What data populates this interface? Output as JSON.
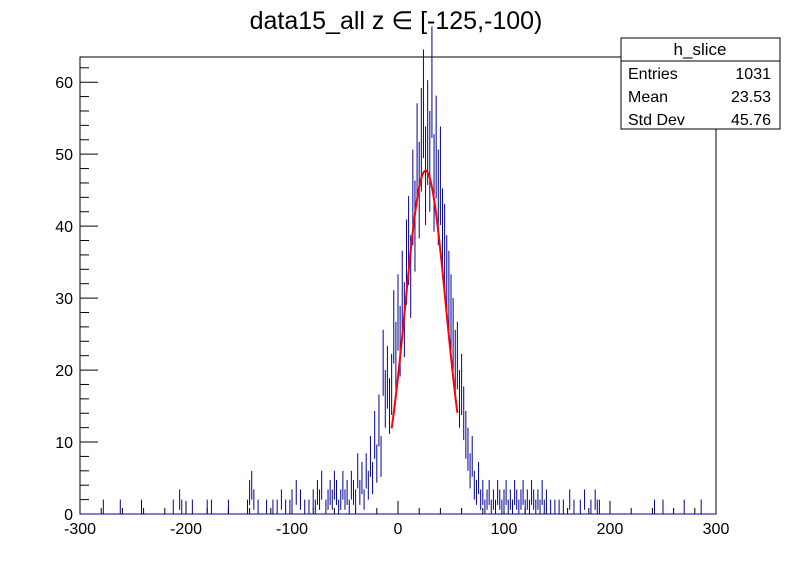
{
  "chart_data": {
    "type": "histogram",
    "title": "data15_all z ∈ [-125,-100)",
    "xlabel": "",
    "ylabel": "",
    "xlim": [
      -300,
      300
    ],
    "ylim": [
      0,
      63.5
    ],
    "x_ticks": [
      -300,
      -200,
      -100,
      0,
      100,
      200,
      300
    ],
    "y_ticks": [
      0,
      10,
      20,
      30,
      40,
      50,
      60
    ],
    "grid": false,
    "bin_width": 2,
    "histogram": {
      "name": "h_slice",
      "color": "#000099",
      "nonzero_bins": [
        [
          -278,
          1
        ],
        [
          -262,
          1
        ],
        [
          -242,
          1
        ],
        [
          -212,
          1
        ],
        [
          -206,
          2
        ],
        [
          -204,
          1
        ],
        [
          -194,
          1
        ],
        [
          -180,
          1
        ],
        [
          -176,
          1
        ],
        [
          -160,
          1
        ],
        [
          -142,
          1
        ],
        [
          -140,
          3
        ],
        [
          -138,
          4
        ],
        [
          -136,
          2
        ],
        [
          -132,
          1
        ],
        [
          -124,
          1
        ],
        [
          -118,
          1
        ],
        [
          -114,
          1
        ],
        [
          -110,
          2
        ],
        [
          -106,
          1
        ],
        [
          -102,
          1
        ],
        [
          -100,
          2
        ],
        [
          -96,
          3
        ],
        [
          -92,
          2
        ],
        [
          -88,
          1
        ],
        [
          -84,
          1
        ],
        [
          -80,
          2
        ],
        [
          -78,
          1
        ],
        [
          -76,
          3
        ],
        [
          -74,
          2
        ],
        [
          -72,
          4
        ],
        [
          -68,
          1
        ],
        [
          -66,
          2
        ],
        [
          -64,
          3
        ],
        [
          -62,
          2
        ],
        [
          -60,
          4
        ],
        [
          -58,
          3
        ],
        [
          -56,
          1
        ],
        [
          -54,
          2
        ],
        [
          -52,
          4
        ],
        [
          -50,
          2
        ],
        [
          -48,
          3
        ],
        [
          -46,
          1
        ],
        [
          -44,
          4
        ],
        [
          -42,
          3
        ],
        [
          -40,
          2
        ],
        [
          -38,
          6
        ],
        [
          -36,
          3
        ],
        [
          -34,
          5
        ],
        [
          -32,
          2
        ],
        [
          -30,
          6
        ],
        [
          -28,
          4
        ],
        [
          -26,
          8
        ],
        [
          -24,
          5
        ],
        [
          -22,
          11
        ],
        [
          -20,
          7
        ],
        [
          -18,
          13
        ],
        [
          -16,
          8
        ],
        [
          -14,
          21
        ],
        [
          -12,
          16
        ],
        [
          -10,
          19
        ],
        [
          -8,
          15
        ],
        [
          -6,
          18
        ],
        [
          -4,
          26
        ],
        [
          -2,
          22
        ],
        [
          0,
          28
        ],
        [
          2,
          24
        ],
        [
          4,
          31
        ],
        [
          6,
          27
        ],
        [
          8,
          35
        ],
        [
          10,
          38
        ],
        [
          12,
          33
        ],
        [
          14,
          44
        ],
        [
          16,
          40
        ],
        [
          18,
          50
        ],
        [
          20,
          45
        ],
        [
          22,
          52
        ],
        [
          24,
          57
        ],
        [
          26,
          47
        ],
        [
          28,
          53
        ],
        [
          30,
          49
        ],
        [
          32,
          60
        ],
        [
          34,
          46
        ],
        [
          36,
          51
        ],
        [
          38,
          44
        ],
        [
          40,
          47
        ],
        [
          42,
          39
        ],
        [
          44,
          37
        ],
        [
          46,
          33
        ],
        [
          48,
          31
        ],
        [
          50,
          28
        ],
        [
          52,
          25
        ],
        [
          54,
          21
        ],
        [
          56,
          22
        ],
        [
          58,
          16
        ],
        [
          60,
          18
        ],
        [
          62,
          14
        ],
        [
          64,
          11
        ],
        [
          66,
          9
        ],
        [
          68,
          6
        ],
        [
          70,
          8
        ],
        [
          72,
          4
        ],
        [
          74,
          3
        ],
        [
          76,
          5
        ],
        [
          78,
          2
        ],
        [
          80,
          3
        ],
        [
          82,
          1
        ],
        [
          84,
          2
        ],
        [
          86,
          3
        ],
        [
          88,
          1
        ],
        [
          90,
          2
        ],
        [
          92,
          1
        ],
        [
          94,
          3
        ],
        [
          96,
          2
        ],
        [
          98,
          1
        ],
        [
          100,
          2
        ],
        [
          102,
          3
        ],
        [
          104,
          1
        ],
        [
          106,
          2
        ],
        [
          108,
          1
        ],
        [
          110,
          3
        ],
        [
          112,
          2
        ],
        [
          114,
          1
        ],
        [
          116,
          2
        ],
        [
          118,
          3
        ],
        [
          120,
          1
        ],
        [
          122,
          2
        ],
        [
          124,
          1
        ],
        [
          126,
          3
        ],
        [
          128,
          2
        ],
        [
          130,
          1
        ],
        [
          132,
          2
        ],
        [
          134,
          1
        ],
        [
          136,
          3
        ],
        [
          138,
          1
        ],
        [
          140,
          2
        ],
        [
          144,
          1
        ],
        [
          148,
          1
        ],
        [
          152,
          1
        ],
        [
          156,
          1
        ],
        [
          162,
          2
        ],
        [
          166,
          1
        ],
        [
          172,
          1
        ],
        [
          176,
          2
        ],
        [
          182,
          1
        ],
        [
          186,
          2
        ],
        [
          188,
          1
        ],
        [
          190,
          1
        ],
        [
          242,
          1
        ],
        [
          250,
          1
        ],
        [
          270,
          1
        ],
        [
          286,
          1
        ]
      ]
    },
    "fit": {
      "type": "gaussian",
      "color": "#ff0000",
      "amplitude": 47.7,
      "mean": 26,
      "sigma": 19.2,
      "range": [
        -6,
        56
      ]
    },
    "stats_box": {
      "name": "h_slice",
      "rows": [
        {
          "label": "Entries",
          "value": "1031"
        },
        {
          "label": "Mean",
          "value": "23.53"
        },
        {
          "label": "Std Dev",
          "value": "45.76"
        }
      ]
    }
  }
}
